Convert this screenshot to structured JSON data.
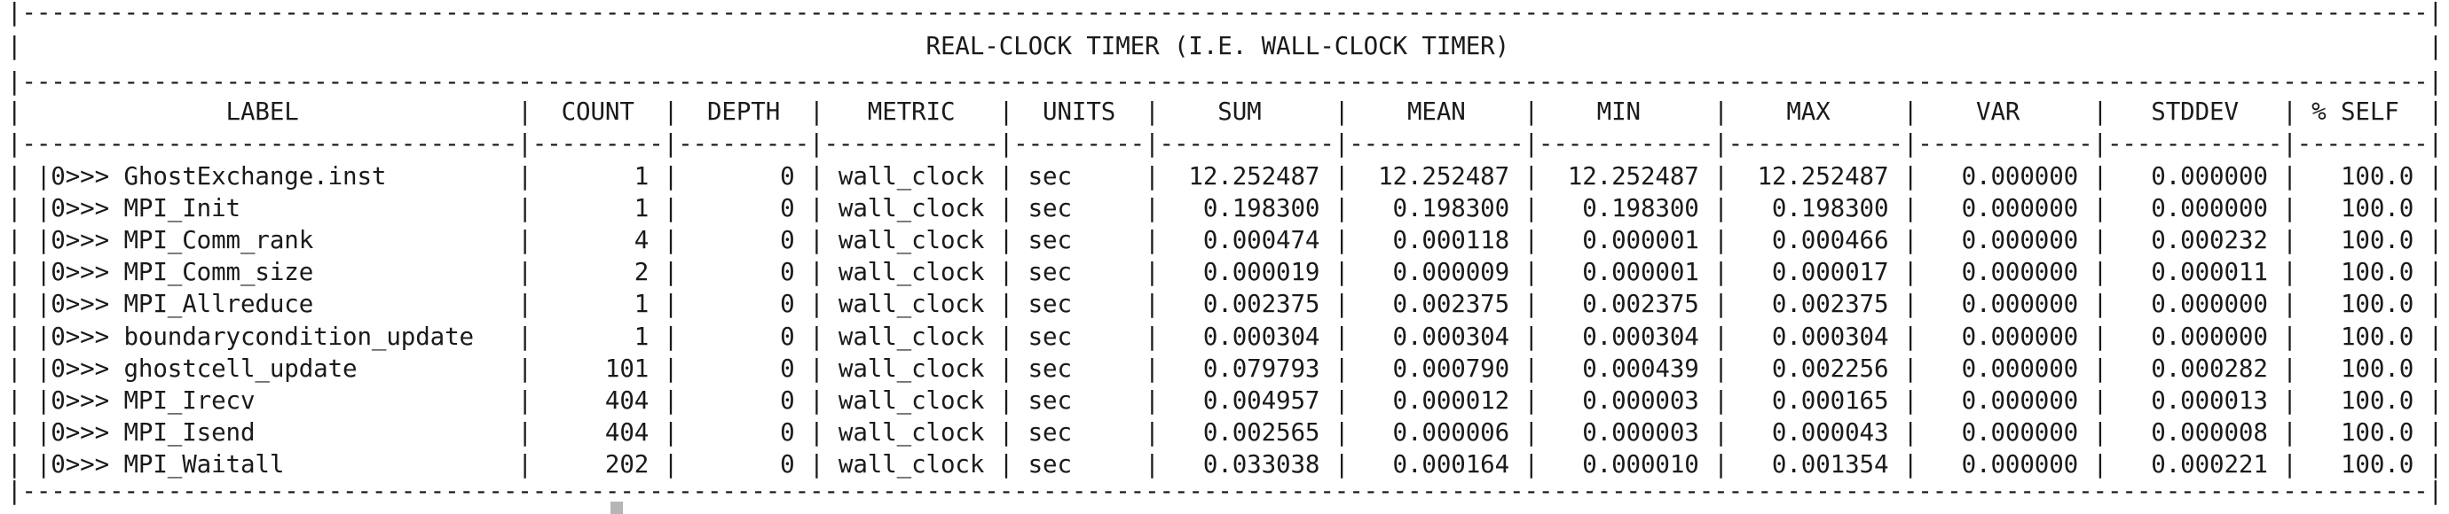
{
  "title": "REAL-CLOCK TIMER (I.E. WALL-CLOCK TIMER)",
  "columns": [
    {
      "name": "LABEL",
      "width": 34,
      "align": "center"
    },
    {
      "name": "COUNT",
      "width": 9,
      "align": "center"
    },
    {
      "name": "DEPTH",
      "width": 9,
      "align": "center"
    },
    {
      "name": "METRIC",
      "width": 12,
      "align": "center"
    },
    {
      "name": "UNITS",
      "width": 9,
      "align": "center"
    },
    {
      "name": "SUM",
      "width": 12,
      "align": "center"
    },
    {
      "name": "MEAN",
      "width": 12,
      "align": "center"
    },
    {
      "name": "MIN",
      "width": 12,
      "align": "center"
    },
    {
      "name": "MAX",
      "width": 12,
      "align": "center"
    },
    {
      "name": "VAR",
      "width": 12,
      "align": "center"
    },
    {
      "name": "STDDEV",
      "width": 12,
      "align": "center"
    },
    {
      "name": "% SELF",
      "width": 9,
      "align": "center"
    }
  ],
  "rows": [
    [
      "|0>>> GhostExchange.inst",
      "1",
      "0",
      "wall_clock",
      "sec",
      "12.252487",
      "12.252487",
      "12.252487",
      "12.252487",
      "0.000000",
      "0.000000",
      "100.0"
    ],
    [
      "|0>>> MPI_Init",
      "1",
      "0",
      "wall_clock",
      "sec",
      "0.198300",
      "0.198300",
      "0.198300",
      "0.198300",
      "0.000000",
      "0.000000",
      "100.0"
    ],
    [
      "|0>>> MPI_Comm_rank",
      "4",
      "0",
      "wall_clock",
      "sec",
      "0.000474",
      "0.000118",
      "0.000001",
      "0.000466",
      "0.000000",
      "0.000232",
      "100.0"
    ],
    [
      "|0>>> MPI_Comm_size",
      "2",
      "0",
      "wall_clock",
      "sec",
      "0.000019",
      "0.000009",
      "0.000001",
      "0.000017",
      "0.000000",
      "0.000011",
      "100.0"
    ],
    [
      "|0>>> MPI_Allreduce",
      "1",
      "0",
      "wall_clock",
      "sec",
      "0.002375",
      "0.002375",
      "0.002375",
      "0.002375",
      "0.000000",
      "0.000000",
      "100.0"
    ],
    [
      "|0>>> boundarycondition_update",
      "1",
      "0",
      "wall_clock",
      "sec",
      "0.000304",
      "0.000304",
      "0.000304",
      "0.000304",
      "0.000000",
      "0.000000",
      "100.0"
    ],
    [
      "|0>>> ghostcell_update",
      "101",
      "0",
      "wall_clock",
      "sec",
      "0.079793",
      "0.000790",
      "0.000439",
      "0.002256",
      "0.000000",
      "0.000282",
      "100.0"
    ],
    [
      "|0>>> MPI_Irecv",
      "404",
      "0",
      "wall_clock",
      "sec",
      "0.004957",
      "0.000012",
      "0.000003",
      "0.000165",
      "0.000000",
      "0.000013",
      "100.0"
    ],
    [
      "|0>>> MPI_Isend",
      "404",
      "0",
      "wall_clock",
      "sec",
      "0.002565",
      "0.000006",
      "0.000003",
      "0.000043",
      "0.000000",
      "0.000008",
      "100.0"
    ],
    [
      "|0>>> MPI_Waitall",
      "202",
      "0",
      "wall_clock",
      "sec",
      "0.033038",
      "0.000164",
      "0.000010",
      "0.001354",
      "0.000000",
      "0.000221",
      "100.0"
    ]
  ],
  "cell_align": [
    "left",
    "right",
    "right",
    "left",
    "left",
    "right",
    "right",
    "right",
    "right",
    "right",
    "right",
    "right"
  ],
  "colors": {
    "background": "#ffffff",
    "text": "#1a1a1a",
    "cursor": "#b5b5b5"
  }
}
